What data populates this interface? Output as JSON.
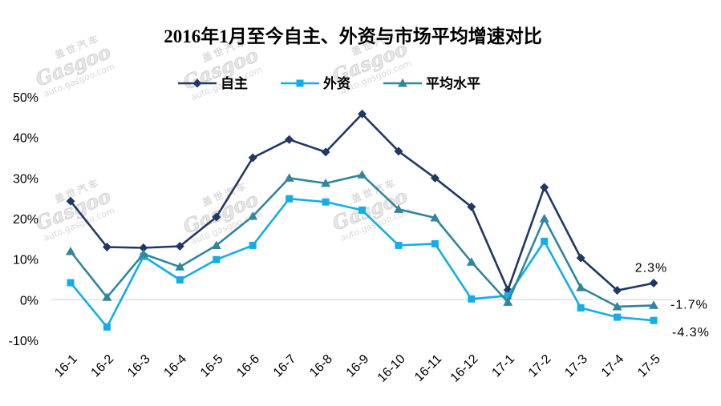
{
  "chart_data": {
    "type": "line",
    "title": "2016年1月至今自主、外资与市场平均增速对比",
    "categories": [
      "16-1",
      "16-2",
      "16-3",
      "16-4",
      "16-5",
      "16-6",
      "16-7",
      "16-8",
      "16-9",
      "16-10",
      "16-11",
      "16-12",
      "17-1",
      "17-2",
      "17-3",
      "17-4",
      "17-5"
    ],
    "series": [
      {
        "name": "自主",
        "marker": "diamond",
        "color": "#203864",
        "values": [
          24.3,
          13.0,
          12.8,
          13.2,
          20.4,
          35.0,
          39.5,
          36.4,
          45.8,
          36.6,
          30.0,
          22.9,
          2.4,
          27.7,
          10.3,
          2.3,
          4.1
        ]
      },
      {
        "name": "外资",
        "marker": "square",
        "color": "#13ADE8",
        "values": [
          4.2,
          -6.7,
          10.7,
          4.9,
          9.9,
          13.4,
          24.9,
          24.1,
          22.1,
          13.4,
          13.8,
          0.2,
          1.0,
          14.4,
          -2.0,
          -4.3,
          -5.1
        ]
      },
      {
        "name": "平均水平",
        "marker": "triangle",
        "color": "#31859C",
        "values": [
          11.9,
          0.6,
          11.3,
          8.1,
          13.4,
          20.6,
          30.0,
          28.7,
          30.8,
          22.3,
          20.2,
          9.3,
          -0.6,
          20.0,
          3.0,
          -1.7,
          -1.4
        ]
      }
    ],
    "ylim": [
      -10,
      50
    ],
    "yticks": [
      {
        "value": 50,
        "label": "50%"
      },
      {
        "value": 40,
        "label": "40%"
      },
      {
        "value": 30,
        "label": "30%"
      },
      {
        "value": 20,
        "label": "20%"
      },
      {
        "value": 10,
        "label": "10%"
      },
      {
        "value": 0,
        "label": "0%"
      },
      {
        "value": -10,
        "label": "-10%"
      }
    ],
    "legend": "top",
    "grid": false,
    "annotations": [
      {
        "text": "2.3%",
        "series": "自主"
      },
      {
        "text": "-1.7%",
        "series": "平均水平"
      },
      {
        "text": "-4.3%",
        "series": "外资"
      }
    ]
  },
  "watermark": {
    "cn": "盖世汽车",
    "logo": "Gasgoo",
    "url": "auto.gasgoo.com"
  }
}
